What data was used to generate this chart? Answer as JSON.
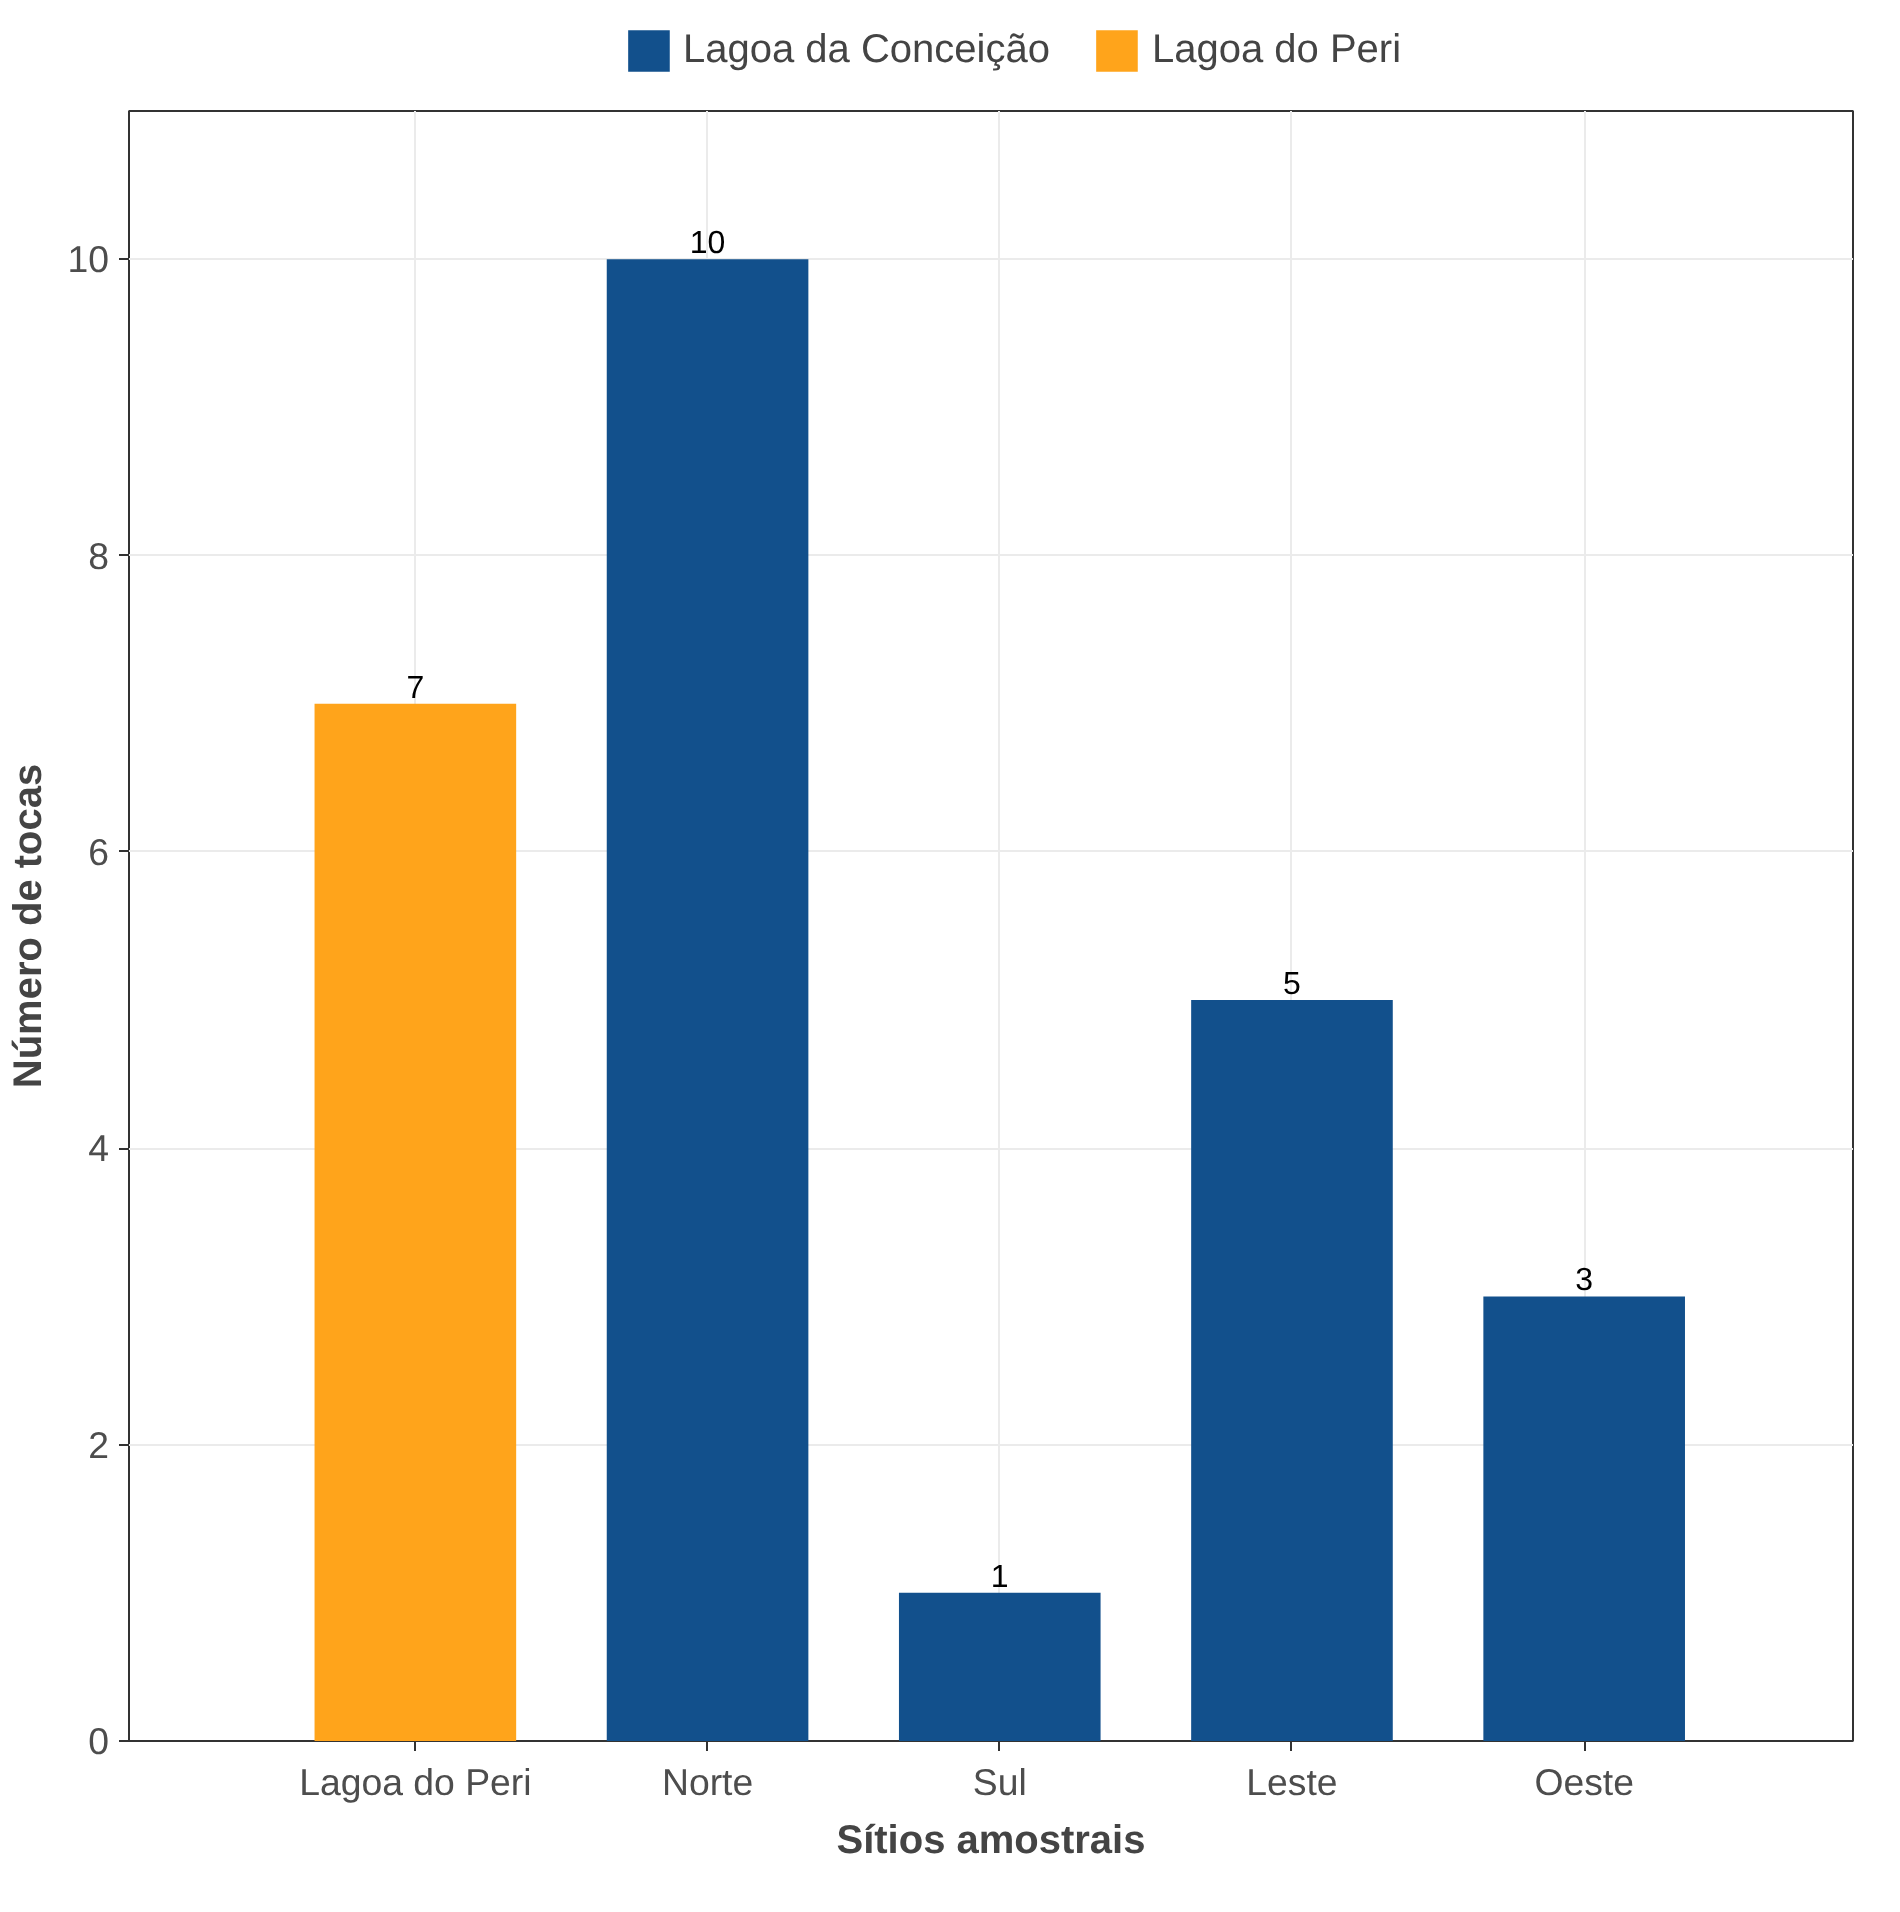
{
  "chart_data": {
    "type": "bar",
    "stacked": true,
    "xlabel": "Sítios amostrais",
    "ylabel": "Número de tocas",
    "categories": [
      "Lagoa do Peri",
      "Norte",
      "Sul",
      "Leste",
      "Oeste"
    ],
    "series": [
      {
        "name": "Lagoa da Conceição",
        "color": "#12508c",
        "values": [
          null,
          10,
          1,
          5,
          3
        ]
      },
      {
        "name": "Lagoa do Peri",
        "color": "#ffa41b",
        "values": [
          7,
          null,
          null,
          null,
          null
        ]
      }
    ],
    "ylim": [
      0,
      11
    ],
    "yticks": [
      0,
      2,
      4,
      6,
      8,
      10
    ],
    "grid": true,
    "legend": "top",
    "data_labels": true
  }
}
